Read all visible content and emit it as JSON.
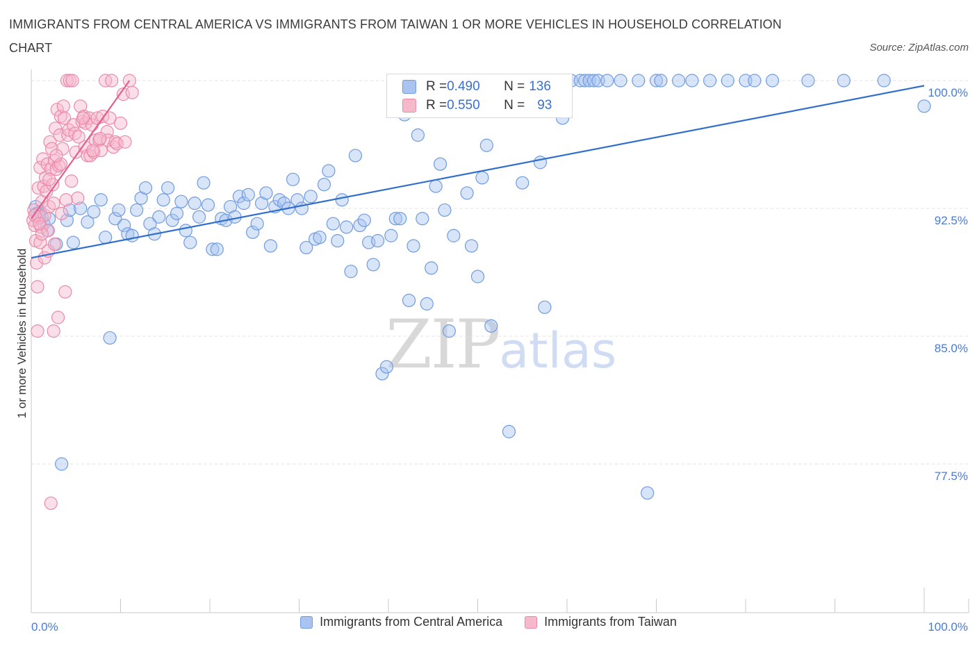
{
  "header": {
    "title": "IMMIGRANTS FROM CENTRAL AMERICA VS IMMIGRANTS FROM TAIWAN 1 OR MORE VEHICLES IN HOUSEHOLD CORRELATION CHART",
    "source": "Source: ZipAtlas.com"
  },
  "watermark": {
    "zip": "ZIP",
    "atlas": "atlas"
  },
  "stats": {
    "central_america": {
      "r_label": "R = ",
      "r": "0.490",
      "n_label": "N = ",
      "n": "136"
    },
    "taiwan": {
      "r_label": "R = ",
      "r": "0.550",
      "n_label": "N = ",
      "n": "93"
    }
  },
  "legend": {
    "central_america": "Immigrants from Central America",
    "taiwan": "Immigrants from Taiwan"
  },
  "colors": {
    "central_america_fill": "#a9c4f0",
    "central_america_stroke": "#6f9be0",
    "central_america_line": "#2f6fcb",
    "taiwan_fill": "#f6b8cb",
    "taiwan_stroke": "#eb8aa8",
    "taiwan_line": "#e0608c",
    "tick_text": "#4a7bd0"
  },
  "chart_data": {
    "type": "scatter",
    "title": "IMMIGRANTS FROM CENTRAL AMERICA VS IMMIGRANTS FROM TAIWAN 1 OR MORE VEHICLES IN HOUSEHOLD CORRELATION CHART",
    "xlabel": "",
    "ylabel": "1 or more Vehicles in Household",
    "xlim": [
      0,
      100
    ],
    "ylim": [
      70,
      100
    ],
    "x_tick_labels": [
      "0.0%",
      "100.0%"
    ],
    "y_ticks": [
      77.5,
      85.0,
      92.5,
      100.0
    ],
    "y_tick_labels": [
      "77.5%",
      "85.0%",
      "92.5%",
      "100.0%"
    ],
    "grid": true,
    "legend_position": "bottom",
    "series": [
      {
        "name": "Immigrants from Central America",
        "trend": {
          "x": [
            0,
            100
          ],
          "y": [
            89.6,
            99.7
          ]
        },
        "points": [
          [
            0.5,
            92.6
          ],
          [
            0.6,
            92.2
          ],
          [
            0.8,
            91.9
          ],
          [
            1.0,
            92.3
          ],
          [
            1.2,
            92.0
          ],
          [
            1.4,
            91.6
          ],
          [
            1.8,
            91.2
          ],
          [
            2.0,
            91.9
          ],
          [
            2.8,
            90.4
          ],
          [
            3.4,
            77.5
          ],
          [
            4.0,
            91.8
          ],
          [
            4.3,
            92.4
          ],
          [
            4.7,
            90.5
          ],
          [
            5.5,
            92.5
          ],
          [
            6.3,
            91.7
          ],
          [
            7.0,
            92.3
          ],
          [
            7.8,
            93.0
          ],
          [
            8.3,
            90.8
          ],
          [
            8.8,
            84.9
          ],
          [
            9.4,
            91.9
          ],
          [
            9.8,
            92.4
          ],
          [
            10.4,
            91.5
          ],
          [
            10.8,
            91.0
          ],
          [
            11.3,
            90.9
          ],
          [
            11.8,
            92.4
          ],
          [
            12.3,
            93.1
          ],
          [
            12.8,
            93.7
          ],
          [
            13.3,
            91.6
          ],
          [
            13.8,
            91.0
          ],
          [
            14.3,
            92.0
          ],
          [
            14.8,
            93.0
          ],
          [
            15.3,
            93.7
          ],
          [
            15.8,
            91.8
          ],
          [
            16.3,
            92.2
          ],
          [
            16.8,
            92.9
          ],
          [
            17.3,
            91.2
          ],
          [
            17.8,
            90.5
          ],
          [
            18.3,
            92.8
          ],
          [
            18.8,
            92.0
          ],
          [
            19.3,
            94.0
          ],
          [
            19.8,
            92.7
          ],
          [
            20.3,
            90.1
          ],
          [
            20.8,
            90.1
          ],
          [
            21.3,
            91.9
          ],
          [
            21.8,
            91.8
          ],
          [
            22.3,
            92.6
          ],
          [
            22.8,
            92.0
          ],
          [
            23.3,
            93.2
          ],
          [
            23.8,
            92.8
          ],
          [
            24.3,
            93.3
          ],
          [
            24.8,
            91.1
          ],
          [
            25.3,
            91.6
          ],
          [
            25.8,
            92.8
          ],
          [
            26.3,
            93.4
          ],
          [
            26.8,
            90.3
          ],
          [
            27.3,
            92.6
          ],
          [
            27.8,
            93.0
          ],
          [
            28.3,
            92.8
          ],
          [
            28.8,
            92.5
          ],
          [
            29.3,
            94.2
          ],
          [
            29.8,
            93.0
          ],
          [
            30.3,
            92.5
          ],
          [
            30.8,
            90.2
          ],
          [
            31.3,
            93.2
          ],
          [
            31.8,
            90.7
          ],
          [
            32.3,
            90.8
          ],
          [
            32.8,
            93.9
          ],
          [
            33.3,
            94.7
          ],
          [
            33.8,
            91.6
          ],
          [
            34.3,
            90.6
          ],
          [
            34.8,
            93.0
          ],
          [
            35.3,
            91.4
          ],
          [
            35.8,
            88.8
          ],
          [
            36.3,
            95.6
          ],
          [
            36.8,
            91.5
          ],
          [
            37.3,
            91.8
          ],
          [
            37.8,
            90.5
          ],
          [
            38.3,
            89.2
          ],
          [
            38.8,
            90.6
          ],
          [
            39.3,
            82.8
          ],
          [
            39.8,
            83.2
          ],
          [
            40.3,
            90.9
          ],
          [
            40.8,
            91.9
          ],
          [
            41.3,
            91.9
          ],
          [
            41.8,
            98.0
          ],
          [
            42.3,
            87.1
          ],
          [
            42.8,
            90.3
          ],
          [
            43.3,
            96.8
          ],
          [
            43.8,
            91.9
          ],
          [
            44.3,
            86.9
          ],
          [
            44.8,
            89.0
          ],
          [
            45.3,
            93.8
          ],
          [
            45.8,
            95.1
          ],
          [
            46.3,
            92.4
          ],
          [
            46.8,
            85.3
          ],
          [
            47.3,
            90.9
          ],
          [
            48.3,
            100.0
          ],
          [
            48.8,
            93.4
          ],
          [
            49.3,
            90.3
          ],
          [
            50.0,
            88.5
          ],
          [
            50.5,
            94.3
          ],
          [
            51.0,
            96.2
          ],
          [
            51.5,
            85.6
          ],
          [
            52.0,
            98.5
          ],
          [
            53.0,
            100.0
          ],
          [
            53.5,
            79.4
          ],
          [
            54.0,
            100.0
          ],
          [
            55.0,
            94.0
          ],
          [
            56.0,
            100.0
          ],
          [
            57.0,
            95.2
          ],
          [
            57.5,
            86.7
          ],
          [
            58.5,
            100.0
          ],
          [
            59.5,
            97.8
          ],
          [
            60.5,
            100.0
          ],
          [
            61.5,
            100.0
          ],
          [
            62.0,
            100.0
          ],
          [
            62.5,
            100.0
          ],
          [
            63.0,
            100.0
          ],
          [
            63.5,
            100.0
          ],
          [
            64.5,
            100.0
          ],
          [
            66.0,
            100.0
          ],
          [
            68.0,
            100.0
          ],
          [
            69.0,
            75.8
          ],
          [
            70.0,
            100.0
          ],
          [
            70.5,
            100.0
          ],
          [
            72.5,
            100.0
          ],
          [
            74.0,
            100.0
          ],
          [
            76.0,
            100.0
          ],
          [
            78.0,
            100.0
          ],
          [
            80.0,
            100.0
          ],
          [
            81.0,
            100.0
          ],
          [
            83.0,
            100.0
          ],
          [
            87.0,
            100.0
          ],
          [
            91.0,
            100.0
          ],
          [
            95.5,
            100.0
          ],
          [
            100.0,
            98.5
          ]
        ]
      },
      {
        "name": "Immigrants from Taiwan",
        "trend": {
          "x": [
            0,
            11
          ],
          "y": [
            91.9,
            100.0
          ]
        },
        "points": [
          [
            0.2,
            91.8
          ],
          [
            0.3,
            92.4
          ],
          [
            0.4,
            91.5
          ],
          [
            0.5,
            90.6
          ],
          [
            0.6,
            89.3
          ],
          [
            0.7,
            87.9
          ],
          [
            0.7,
            85.3
          ],
          [
            0.8,
            93.7
          ],
          [
            0.9,
            92.0
          ],
          [
            1.0,
            94.9
          ],
          [
            1.0,
            90.5
          ],
          [
            1.1,
            91.4
          ],
          [
            1.2,
            92.9
          ],
          [
            1.3,
            95.4
          ],
          [
            1.4,
            93.8
          ],
          [
            1.5,
            89.6
          ],
          [
            1.5,
            92.1
          ],
          [
            1.6,
            94.3
          ],
          [
            1.7,
            93.5
          ],
          [
            1.8,
            95.1
          ],
          [
            1.9,
            90.0
          ],
          [
            2.0,
            92.6
          ],
          [
            2.1,
            96.4
          ],
          [
            2.2,
            75.2
          ],
          [
            2.2,
            94.8
          ],
          [
            2.3,
            96.0
          ],
          [
            2.4,
            93.9
          ],
          [
            2.5,
            85.3
          ],
          [
            2.6,
            95.3
          ],
          [
            2.6,
            90.4
          ],
          [
            2.7,
            97.2
          ],
          [
            2.8,
            94.8
          ],
          [
            2.9,
            98.3
          ],
          [
            3.0,
            86.1
          ],
          [
            3.1,
            95.0
          ],
          [
            3.2,
            96.8
          ],
          [
            3.3,
            97.9
          ],
          [
            3.3,
            95.1
          ],
          [
            3.4,
            92.2
          ],
          [
            3.5,
            96.0
          ],
          [
            3.6,
            98.5
          ],
          [
            3.7,
            97.8
          ],
          [
            3.8,
            87.6
          ],
          [
            4.0,
            100.0
          ],
          [
            4.1,
            96.8
          ],
          [
            4.2,
            97.1
          ],
          [
            4.3,
            100.0
          ],
          [
            4.5,
            94.1
          ],
          [
            4.6,
            100.0
          ],
          [
            4.7,
            97.4
          ],
          [
            4.9,
            96.9
          ],
          [
            5.0,
            95.8
          ],
          [
            5.2,
            93.1
          ],
          [
            5.3,
            96.7
          ],
          [
            5.5,
            98.5
          ],
          [
            5.7,
            97.6
          ],
          [
            5.9,
            97.9
          ],
          [
            6.0,
            96.1
          ],
          [
            6.1,
            97.5
          ],
          [
            6.3,
            95.6
          ],
          [
            6.5,
            97.8
          ],
          [
            6.6,
            95.6
          ],
          [
            6.8,
            97.4
          ],
          [
            7.0,
            95.8
          ],
          [
            7.2,
            96.5
          ],
          [
            7.4,
            97.8
          ],
          [
            7.6,
            96.5
          ],
          [
            7.8,
            95.9
          ],
          [
            8.0,
            97.9
          ],
          [
            8.3,
            100.0
          ],
          [
            8.5,
            97.0
          ],
          [
            8.6,
            96.5
          ],
          [
            8.8,
            97.8
          ],
          [
            9.0,
            100.0
          ],
          [
            9.2,
            96.1
          ],
          [
            9.4,
            96.4
          ],
          [
            9.6,
            96.3
          ],
          [
            10.0,
            97.5
          ],
          [
            10.3,
            99.2
          ],
          [
            10.5,
            96.4
          ],
          [
            11.0,
            100.0
          ],
          [
            11.3,
            99.3
          ],
          [
            2.5,
            92.8
          ],
          [
            1.9,
            91.2
          ],
          [
            3.9,
            93.0
          ],
          [
            5.8,
            97.8
          ],
          [
            6.9,
            95.9
          ],
          [
            7.7,
            96.6
          ],
          [
            2.8,
            95.6
          ],
          [
            1.2,
            91.0
          ],
          [
            0.4,
            92.1
          ],
          [
            0.9,
            91.6
          ],
          [
            2.0,
            94.2
          ]
        ]
      }
    ]
  }
}
